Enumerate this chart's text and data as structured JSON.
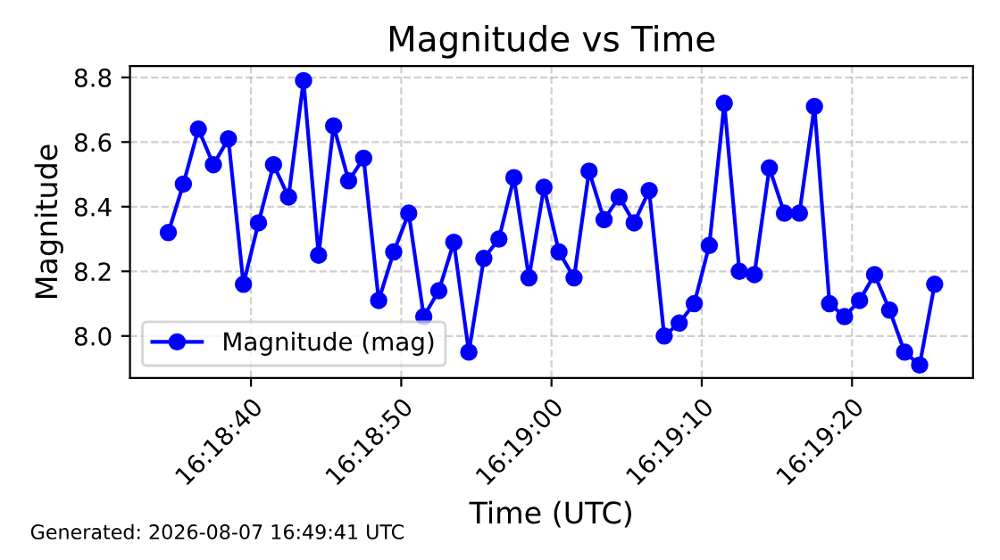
{
  "chart_data": {
    "type": "line",
    "title": "Magnitude vs Time",
    "xlabel": "Time (UTC)",
    "ylabel": "Magnitude",
    "x": [
      "2026-08-07T16:18:34.5",
      "2026-08-07T16:18:35.5",
      "2026-08-07T16:18:36.5",
      "2026-08-07T16:18:37.5",
      "2026-08-07T16:18:38.5",
      "2026-08-07T16:18:39.5",
      "2026-08-07T16:18:40.5",
      "2026-08-07T16:18:41.5",
      "2026-08-07T16:18:42.5",
      "2026-08-07T16:18:43.5",
      "2026-08-07T16:18:44.5",
      "2026-08-07T16:18:45.5",
      "2026-08-07T16:18:46.5",
      "2026-08-07T16:18:47.5",
      "2026-08-07T16:18:48.5",
      "2026-08-07T16:18:49.5",
      "2026-08-07T16:18:50.5",
      "2026-08-07T16:18:51.5",
      "2026-08-07T16:18:52.5",
      "2026-08-07T16:18:53.5",
      "2026-08-07T16:18:54.5",
      "2026-08-07T16:18:55.5",
      "2026-08-07T16:18:56.5",
      "2026-08-07T16:18:57.5",
      "2026-08-07T16:18:58.5",
      "2026-08-07T16:18:59.5",
      "2026-08-07T16:19:00.5",
      "2026-08-07T16:19:01.5",
      "2026-08-07T16:19:02.5",
      "2026-08-07T16:19:03.5",
      "2026-08-07T16:19:04.5",
      "2026-08-07T16:19:05.5",
      "2026-08-07T16:19:06.5",
      "2026-08-07T16:19:07.5",
      "2026-08-07T16:19:08.5",
      "2026-08-07T16:19:09.5",
      "2026-08-07T16:19:10.5",
      "2026-08-07T16:19:11.5",
      "2026-08-07T16:19:12.5",
      "2026-08-07T16:19:13.5",
      "2026-08-07T16:19:14.5",
      "2026-08-07T16:19:15.5",
      "2026-08-07T16:19:16.5",
      "2026-08-07T16:19:17.5",
      "2026-08-07T16:19:18.5",
      "2026-08-07T16:19:19.5",
      "2026-08-07T16:19:20.5",
      "2026-08-07T16:19:21.5",
      "2026-08-07T16:19:22.5",
      "2026-08-07T16:19:23.5",
      "2026-08-07T16:19:24.5",
      "2026-08-07T16:19:25.5"
    ],
    "series": [
      {
        "name": "Magnitude (mag)",
        "color": "#0000ff",
        "values": [
          8.32,
          8.47,
          8.64,
          8.53,
          8.61,
          8.16,
          8.35,
          8.53,
          8.43,
          8.79,
          8.25,
          8.65,
          8.48,
          8.55,
          8.11,
          8.26,
          8.38,
          8.06,
          8.14,
          8.29,
          7.95,
          8.24,
          8.3,
          8.49,
          8.18,
          8.46,
          8.26,
          8.18,
          8.51,
          8.36,
          8.43,
          8.35,
          8.45,
          8.0,
          8.04,
          8.1,
          8.28,
          8.72,
          8.2,
          8.19,
          8.52,
          8.38,
          8.38,
          8.71,
          8.1,
          8.06,
          8.11,
          8.19,
          8.08,
          7.95,
          7.91,
          8.16
        ]
      }
    ],
    "xlim": [
      "2026-08-07T16:18:31.95",
      "2026-08-07T16:19:28.05"
    ],
    "xticks": [
      {
        "value": "2026-08-07T16:18:40",
        "label": "16:18:40"
      },
      {
        "value": "2026-08-07T16:18:50",
        "label": "16:18:50"
      },
      {
        "value": "2026-08-07T16:19:00",
        "label": "16:19:00"
      },
      {
        "value": "2026-08-07T16:19:10",
        "label": "16:19:10"
      },
      {
        "value": "2026-08-07T16:19:20",
        "label": "16:19:20"
      }
    ],
    "ylim": [
      7.87,
      8.835
    ],
    "yticks": [
      {
        "value": 8,
        "label": "8.0"
      },
      8.2,
      8.4,
      8.6,
      8.8
    ],
    "grid": true,
    "legend": "bottom left",
    "marker": "circle",
    "line_style": "solid",
    "annotations": [
      "Generated: 2026-08-07 16:49:41 UTC"
    ]
  }
}
